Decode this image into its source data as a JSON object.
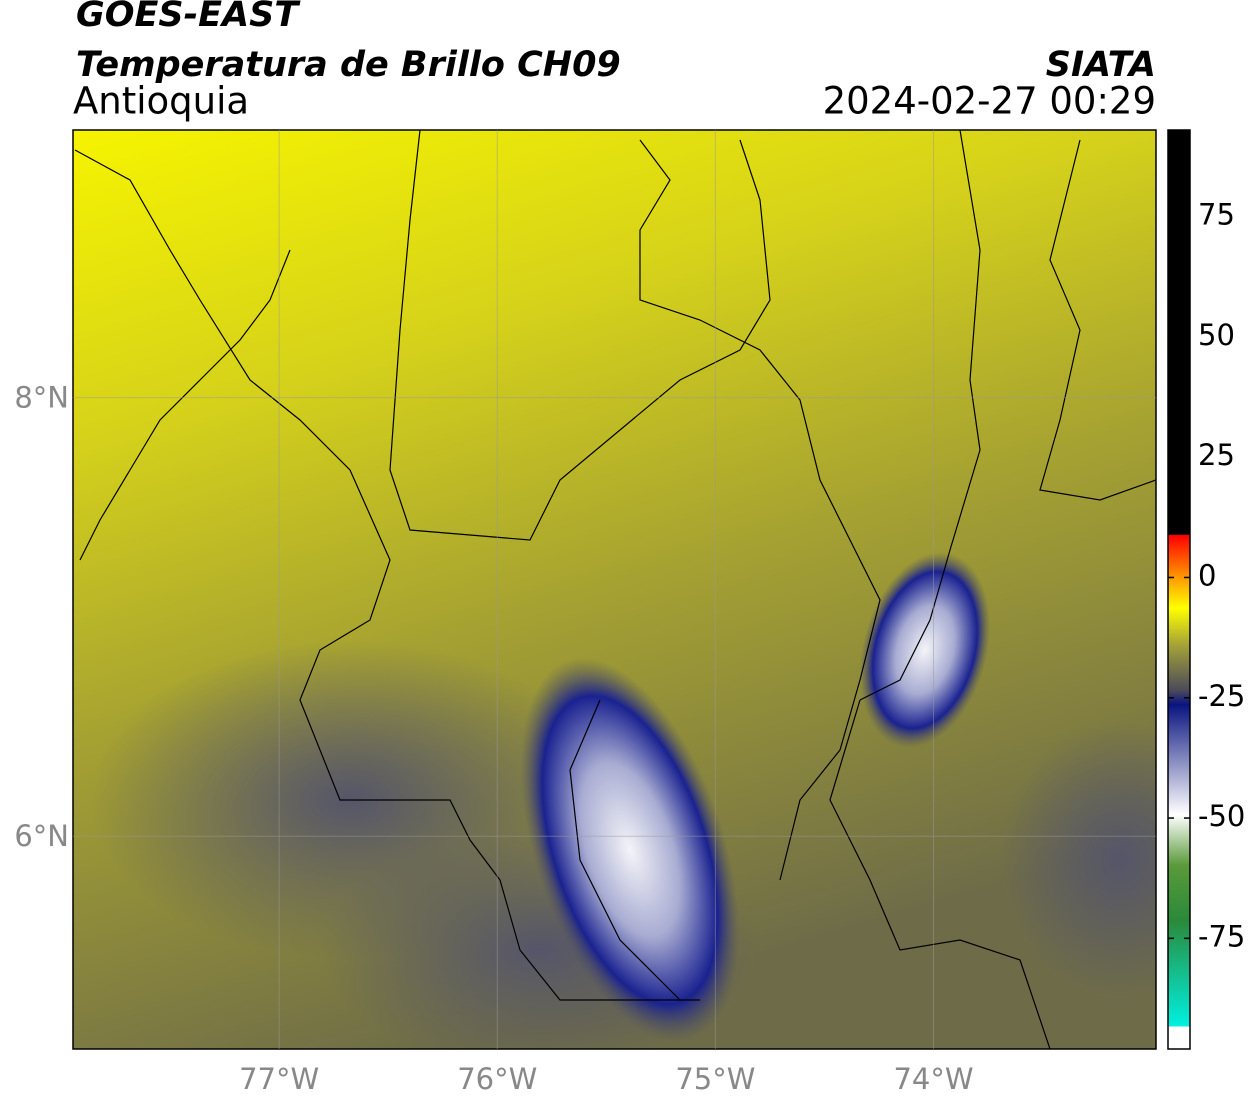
{
  "header": {
    "title": "GOES-EAST",
    "subtitle": "Temperatura de Brillo CH09",
    "region": "Antioquia",
    "source": "SIATA",
    "timestamp": "2024-02-27 00:29"
  },
  "map": {
    "xlim": [
      -77.945,
      -72.98
    ],
    "ylim": [
      5.03,
      9.22
    ],
    "xticks": [
      {
        "value": -77,
        "label": "77°W"
      },
      {
        "value": -76,
        "label": "76°W"
      },
      {
        "value": -75,
        "label": "75°W"
      },
      {
        "value": -74,
        "label": "74°W"
      }
    ],
    "yticks": [
      {
        "value": 6,
        "label": "6°N"
      },
      {
        "value": 8,
        "label": "8°N"
      }
    ],
    "grid": true
  },
  "colorbar": {
    "lim": [
      -98,
      93
    ],
    "ticks": [
      -75,
      -50,
      -25,
      0,
      25,
      50,
      75
    ]
  }
}
